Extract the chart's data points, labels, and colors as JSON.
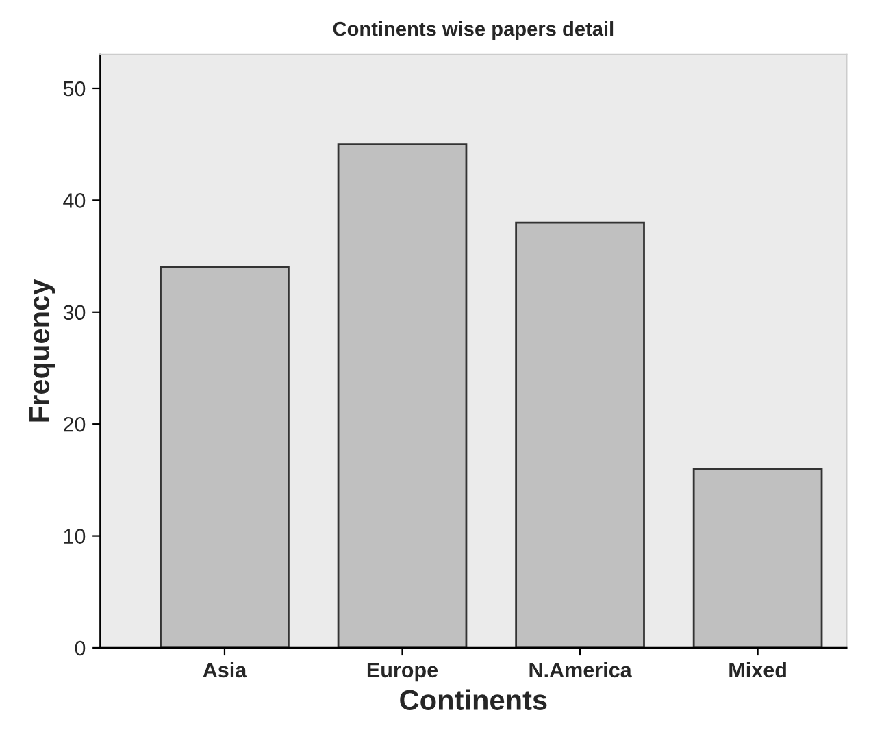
{
  "chart_data": {
    "type": "bar",
    "title": "Continents wise papers detail",
    "xlabel": "Continents",
    "ylabel": "Frequency",
    "categories": [
      "Asia",
      "Europe",
      "N.America",
      "Mixed"
    ],
    "values": [
      34,
      45,
      38,
      16
    ],
    "color": "#c0c0c0",
    "ylim": [
      0,
      53
    ],
    "yticks": [
      0,
      10,
      20,
      30,
      40,
      50
    ],
    "grid": false,
    "legend": false
  }
}
